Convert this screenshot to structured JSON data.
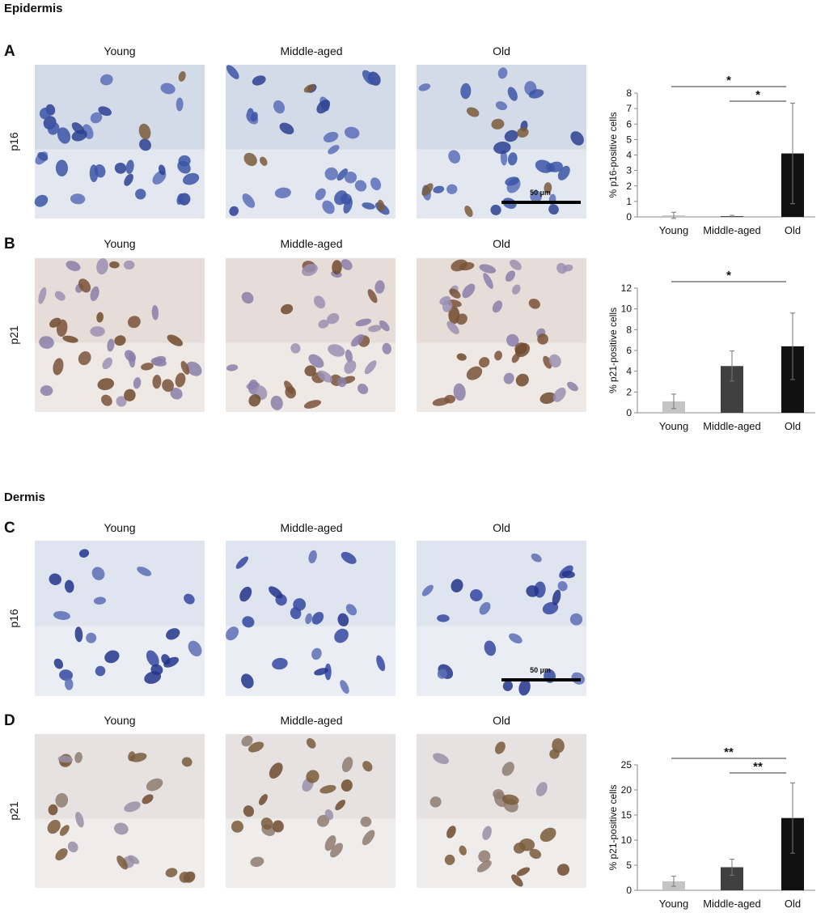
{
  "sections": [
    {
      "title": "Epidermis"
    },
    {
      "title": "Dermis"
    }
  ],
  "panels": [
    {
      "letter": "A",
      "marker": "p16",
      "columns": [
        "Young",
        "Middle-aged",
        "Old"
      ],
      "scale_bar": "50 µm"
    },
    {
      "letter": "B",
      "marker": "p21",
      "columns": [
        "Young",
        "Middle-aged",
        "Old"
      ]
    },
    {
      "letter": "C",
      "marker": "p16",
      "columns": [
        "Young",
        "Middle-aged",
        "Old"
      ],
      "scale_bar": "50 µm"
    },
    {
      "letter": "D",
      "marker": "p21",
      "columns": [
        "Young",
        "Middle-aged",
        "Old"
      ]
    }
  ],
  "chart_data": [
    {
      "type": "bar",
      "y_label": "% p16-positive cells",
      "categories": [
        "Young",
        "Middle-aged",
        "Old"
      ],
      "values": [
        0.1,
        0.05,
        4.1
      ],
      "errors": [
        0.2,
        0.05,
        3.25
      ],
      "colors": [
        "#c4c4c4",
        "#404040",
        "#111111"
      ],
      "ylim": [
        0,
        8
      ],
      "yticks": [
        0,
        1,
        2,
        3,
        4,
        5,
        6,
        7,
        8
      ],
      "annotations": [
        {
          "text": "*",
          "from": 0,
          "to": 2
        },
        {
          "text": "*",
          "from": 1,
          "to": 2
        }
      ]
    },
    {
      "type": "bar",
      "y_label": "% p21-positive cells",
      "categories": [
        "Young",
        "Middle-aged",
        "Old"
      ],
      "values": [
        1.1,
        4.5,
        6.4
      ],
      "errors": [
        0.7,
        1.45,
        3.2
      ],
      "colors": [
        "#c4c4c4",
        "#404040",
        "#111111"
      ],
      "ylim": [
        0,
        12
      ],
      "yticks": [
        0,
        2,
        4,
        6,
        8,
        10,
        12
      ],
      "annotations": [
        {
          "text": "*",
          "from": 0,
          "to": 2
        }
      ]
    },
    {
      "type": "bar",
      "y_label": "% p21-positive cells",
      "categories": [
        "Young",
        "Middle-aged",
        "Old"
      ],
      "values": [
        1.8,
        4.6,
        14.4
      ],
      "errors": [
        1.0,
        1.6,
        7.0
      ],
      "colors": [
        "#c4c4c4",
        "#404040",
        "#111111"
      ],
      "ylim": [
        0,
        25
      ],
      "yticks": [
        0,
        5,
        10,
        15,
        20,
        25
      ],
      "annotations": [
        {
          "text": "**",
          "from": 0,
          "to": 2
        },
        {
          "text": "**",
          "from": 1,
          "to": 2
        }
      ]
    }
  ]
}
